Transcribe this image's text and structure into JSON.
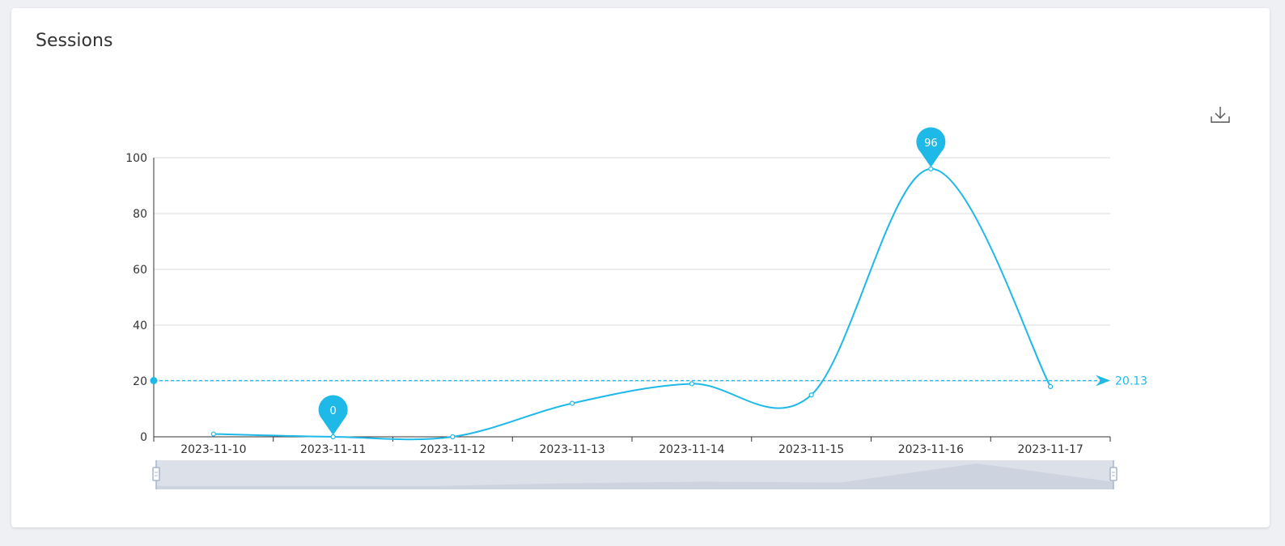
{
  "card": {
    "title": "Sessions"
  },
  "toolbar": {
    "download_icon": "download-icon"
  },
  "colors": {
    "series": "#1fb9e8",
    "grid": "#d9dbe0",
    "axis": "#333333",
    "zoom_fill": "#d5dbe5",
    "zoom_handle": "#a7b7cc"
  },
  "chart_data": {
    "type": "line",
    "smooth": true,
    "categories": [
      "2023-11-10",
      "2023-11-11",
      "2023-11-12",
      "2023-11-13",
      "2023-11-14",
      "2023-11-15",
      "2023-11-16",
      "2023-11-17"
    ],
    "series": [
      {
        "values": [
          1,
          0,
          0,
          12,
          19,
          15,
          96,
          18
        ]
      }
    ],
    "ylim": [
      0,
      100
    ],
    "yticks": [
      0,
      20,
      40,
      60,
      80,
      100
    ],
    "grid": true,
    "markpoints": [
      {
        "type": "min",
        "category": "2023-11-11",
        "value": 0,
        "label": "0"
      },
      {
        "type": "max",
        "category": "2023-11-16",
        "value": 96,
        "label": "96"
      }
    ],
    "markline": {
      "type": "average",
      "value": 20.13,
      "label": "20.13"
    },
    "datazoom": {
      "start": 0,
      "end": 100
    }
  }
}
